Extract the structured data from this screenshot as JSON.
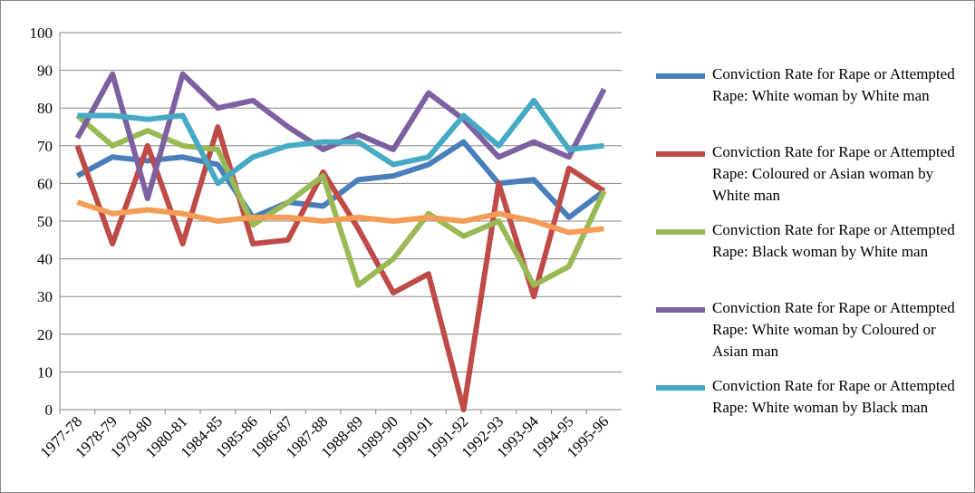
{
  "chart_data": {
    "type": "line",
    "categories": [
      "1977-78",
      "1978-79",
      "1979-80",
      "1980-81",
      "1984-85",
      "1985-86",
      "1986-87",
      "1987-88",
      "1988-89",
      "1989-90",
      "1990-91",
      "1991-92",
      "1992-93",
      "1993-94",
      "1994-95",
      "1995-96"
    ],
    "series": [
      {
        "name": "Conviction Rate for Rape or Attempted Rape: White woman by White man",
        "color": "#4a7ebb",
        "values": [
          62,
          67,
          66,
          67,
          65,
          51,
          55,
          54,
          61,
          62,
          65,
          71,
          60,
          61,
          51,
          58
        ]
      },
      {
        "name": "Conviction Rate for Rape or Attempted Rape: Coloured or Asian woman by White man",
        "color": "#be4b48",
        "values": [
          70,
          44,
          70,
          44,
          75,
          44,
          45,
          63,
          48,
          31,
          36,
          0,
          60,
          30,
          64,
          58
        ]
      },
      {
        "name": "Conviction Rate for Rape or Attempted Rape: Black woman by White man",
        "color": "#98b954",
        "values": [
          78,
          70,
          74,
          70,
          69,
          49,
          55,
          62,
          33,
          40,
          52,
          46,
          50,
          33,
          38,
          58
        ]
      },
      {
        "name": "Conviction Rate for Rape or Attempted Rape: White woman by Coloured or Asian man",
        "color": "#7d60a0",
        "values": [
          72,
          89,
          56,
          89,
          80,
          82,
          75,
          69,
          73,
          69,
          84,
          77,
          67,
          71,
          67,
          85
        ]
      },
      {
        "name": "Conviction Rate for Rape or Attempted Rape: White woman by Black man",
        "color": "#46aac5",
        "values": [
          78,
          78,
          77,
          78,
          60,
          67,
          70,
          71,
          71,
          65,
          67,
          78,
          70,
          82,
          69,
          70
        ]
      },
      {
        "color": "#f59d56",
        "values": [
          55,
          52,
          53,
          52,
          50,
          51,
          51,
          50,
          51,
          50,
          51,
          50,
          52,
          50,
          47,
          48
        ]
      }
    ],
    "ylim": [
      0,
      100
    ],
    "yticks": [
      0,
      10,
      20,
      30,
      40,
      50,
      60,
      70,
      80,
      90,
      100
    ],
    "grid": true
  }
}
